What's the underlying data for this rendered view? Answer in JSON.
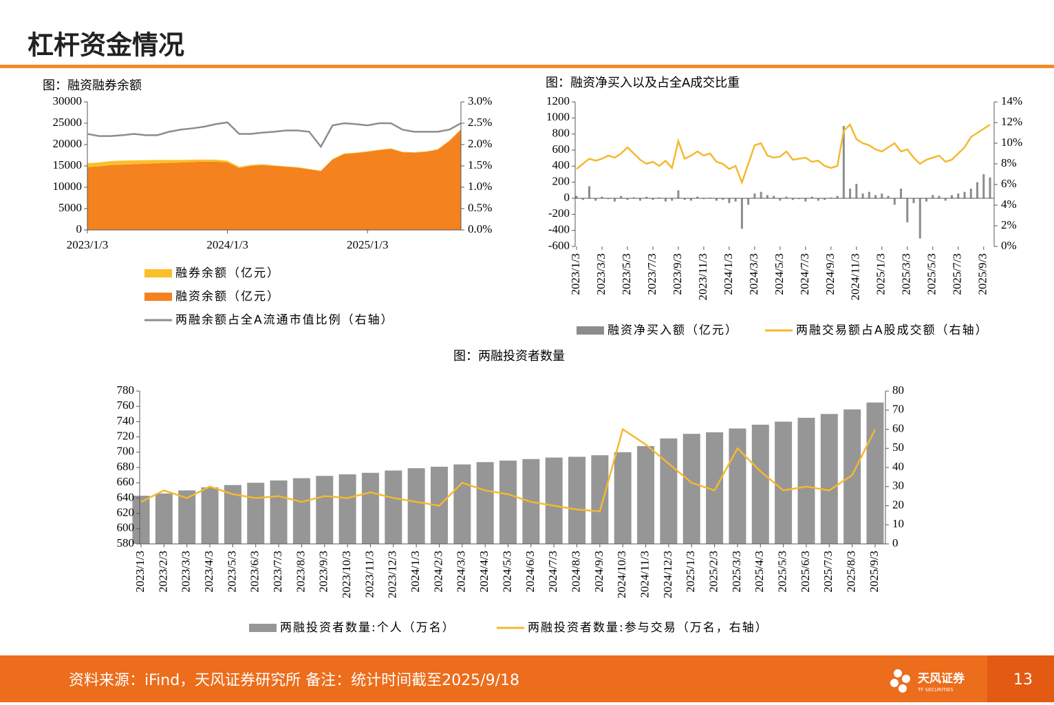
{
  "header": {
    "title": "杠杆资金情况"
  },
  "footer": {
    "source": "资料来源：iFind，天风证券研究所 备注：统计时间截至2025/9/18",
    "logo_cn": "天风证券",
    "logo_en": "TF SECURITIES",
    "page_number": "13"
  },
  "chart_data": [
    {
      "type": "area",
      "title": "图：融资融券余额",
      "stacked": true,
      "categories": [
        "2023/1/3",
        null,
        null,
        null,
        null,
        null,
        null,
        null,
        null,
        null,
        null,
        null,
        "2024/1/3",
        null,
        null,
        null,
        null,
        null,
        null,
        null,
        null,
        null,
        null,
        null,
        "2025/1/3",
        null,
        null,
        null,
        null,
        null,
        null,
        null,
        null
      ],
      "ylim": [
        0,
        30000
      ],
      "yticks": [
        0,
        5000,
        10000,
        15000,
        20000,
        25000,
        30000
      ],
      "y2lim": [
        0,
        3
      ],
      "y2ticks": [
        {
          "value": 0,
          "label": "0.0%"
        },
        {
          "value": 0.5,
          "label": "0.5%"
        },
        {
          "value": 1,
          "label": "1.0%"
        },
        {
          "value": 1.5,
          "label": "1.5%"
        },
        {
          "value": 2,
          "label": "2.0%"
        },
        {
          "value": 2.5,
          "label": "2.5%"
        },
        {
          "value": 3,
          "label": "3.0%"
        }
      ],
      "series": [
        {
          "name": "融券余额（亿元）",
          "type": "area",
          "color": "#fbbf2a",
          "values": [
            900,
            920,
            930,
            950,
            900,
            850,
            800,
            700,
            600,
            550,
            500,
            450,
            400,
            300,
            250,
            200,
            150,
            120,
            110,
            100,
            100,
            110,
            120,
            120,
            120,
            120,
            120,
            110,
            110,
            110,
            110,
            120,
            120
          ]
        },
        {
          "name": "融资余额（亿元）",
          "type": "area",
          "color": "#f4821f",
          "values": [
            14700,
            14900,
            15200,
            15300,
            15400,
            15500,
            15600,
            15700,
            15800,
            15900,
            16000,
            16000,
            15800,
            14500,
            15000,
            15200,
            15000,
            14800,
            14600,
            14200,
            13800,
            16500,
            17800,
            18000,
            18300,
            18700,
            19000,
            18200,
            18100,
            18300,
            18800,
            20800,
            23500
          ]
        },
        {
          "name": "两融余额占全A流通市值比例（右轴）",
          "type": "line",
          "axis": "y2",
          "color": "#8c8c8c",
          "values": [
            2.25,
            2.2,
            2.2,
            2.22,
            2.25,
            2.22,
            2.22,
            2.3,
            2.35,
            2.38,
            2.42,
            2.48,
            2.52,
            2.25,
            2.25,
            2.28,
            2.3,
            2.33,
            2.33,
            2.3,
            1.95,
            2.45,
            2.5,
            2.48,
            2.45,
            2.5,
            2.5,
            2.35,
            2.3,
            2.3,
            2.3,
            2.35,
            2.5
          ]
        }
      ]
    },
    {
      "type": "bar",
      "title": "图：融资净买入以及占全A成交比重",
      "categories": [
        "2023/1/3",
        null,
        null,
        null,
        "2023/3/3",
        null,
        null,
        null,
        "2023/5/3",
        null,
        null,
        null,
        "2023/7/3",
        null,
        null,
        null,
        "2023/9/3",
        null,
        null,
        null,
        "2023/11/3",
        null,
        null,
        null,
        "2024/1/3",
        null,
        null,
        null,
        "2024/3/3",
        null,
        null,
        null,
        "2024/5/3",
        null,
        null,
        null,
        "2024/7/3",
        null,
        null,
        null,
        "2024/9/3",
        null,
        null,
        null,
        "2024/11/3",
        null,
        null,
        null,
        "2025/1/3",
        null,
        null,
        null,
        "2025/3/3",
        null,
        null,
        null,
        "2025/5/3",
        null,
        null,
        null,
        "2025/7/3",
        null,
        null,
        null,
        "2025/9/3",
        null
      ],
      "ylim": [
        -600,
        1200
      ],
      "yticks": [
        -600,
        -400,
        -200,
        0,
        200,
        400,
        600,
        800,
        1000,
        1200
      ],
      "y2lim": [
        0,
        14
      ],
      "y2ticks": [
        {
          "value": 0,
          "label": "0%"
        },
        {
          "value": 2,
          "label": "2%"
        },
        {
          "value": 4,
          "label": "4%"
        },
        {
          "value": 6,
          "label": "6%"
        },
        {
          "value": 8,
          "label": "8%"
        },
        {
          "value": 10,
          "label": "10%"
        },
        {
          "value": 12,
          "label": "12%"
        },
        {
          "value": 14,
          "label": "14%"
        }
      ],
      "series": [
        {
          "name": "融资净买入额（亿元）",
          "type": "bar",
          "color": "#8c8c8c",
          "values": [
            30,
            -20,
            150,
            -30,
            20,
            -10,
            -40,
            30,
            -20,
            10,
            -30,
            20,
            -20,
            10,
            -40,
            -30,
            100,
            -20,
            -30,
            20,
            -10,
            10,
            -30,
            -20,
            -60,
            -40,
            -380,
            -80,
            60,
            80,
            40,
            30,
            -30,
            20,
            -20,
            -10,
            -40,
            20,
            -30,
            -20,
            10,
            30,
            900,
            120,
            180,
            60,
            80,
            40,
            60,
            30,
            -80,
            120,
            -300,
            -60,
            -500,
            -40,
            40,
            30,
            -30,
            40,
            60,
            80,
            120,
            200,
            300,
            260
          ]
        },
        {
          "name": "两融交易额占A股成交额（右轴）",
          "type": "line",
          "axis": "y2",
          "color": "#f5b82e",
          "values": [
            7.5,
            8.0,
            8.5,
            8.3,
            8.5,
            8.8,
            8.6,
            9.0,
            9.6,
            9.0,
            8.4,
            8.0,
            8.2,
            7.8,
            8.3,
            7.6,
            10.2,
            8.5,
            8.8,
            9.2,
            8.8,
            9.0,
            8.2,
            8.0,
            7.5,
            7.8,
            6.2,
            8.0,
            9.8,
            10.0,
            8.8,
            8.6,
            8.7,
            9.2,
            8.4,
            8.5,
            8.6,
            8.2,
            8.3,
            7.8,
            7.6,
            7.8,
            11.2,
            11.8,
            10.4,
            10.0,
            9.8,
            9.4,
            9.2,
            9.6,
            10.0,
            9.2,
            9.4,
            8.6,
            8.0,
            8.4,
            8.6,
            8.8,
            8.2,
            8.4,
            9.0,
            9.6,
            10.6,
            11.0,
            11.4,
            11.8
          ]
        }
      ]
    },
    {
      "type": "bar",
      "title": "图：两融投资者数量",
      "categories": [
        "2023/1/3",
        "2023/2/3",
        "2023/3/3",
        "2023/4/3",
        "2023/5/3",
        "2023/6/3",
        "2023/7/3",
        "2023/8/3",
        "2023/9/3",
        "2023/10/3",
        "2023/11/3",
        "2023/12/3",
        "2024/1/3",
        "2024/2/3",
        "2024/3/3",
        "2024/4/3",
        "2024/5/3",
        "2024/6/3",
        "2024/7/3",
        "2024/8/3",
        "2024/9/3",
        "2024/10/3",
        "2024/11/3",
        "2024/12/3",
        "2025/1/3",
        "2025/2/3",
        "2025/3/3",
        "2025/4/3",
        "2025/5/3",
        "2025/6/3",
        "2025/7/3",
        "2025/8/3",
        "2025/9/3"
      ],
      "ylim": [
        580,
        780
      ],
      "yticks": [
        580,
        600,
        620,
        640,
        660,
        680,
        700,
        720,
        740,
        760,
        780
      ],
      "y2lim": [
        0,
        80
      ],
      "y2ticks": [
        0,
        10,
        20,
        30,
        40,
        50,
        60,
        70,
        80
      ],
      "series": [
        {
          "name": "两融投资者数量:个人（万名）",
          "type": "bar",
          "color": "#969696",
          "values": [
            643,
            646,
            650,
            654,
            657,
            660,
            663,
            666,
            669,
            671,
            673,
            676,
            679,
            681,
            684,
            687,
            689,
            691,
            693,
            694,
            696,
            700,
            708,
            718,
            724,
            726,
            731,
            736,
            740,
            745,
            750,
            756,
            765
          ]
        },
        {
          "name": "两融投资者数量:参与交易（万名，右轴）",
          "type": "line",
          "axis": "y2",
          "color": "#f5b82e",
          "values": [
            22,
            28,
            24,
            30,
            26,
            24,
            25,
            22,
            25,
            24,
            27,
            24,
            22,
            20,
            32,
            28,
            26,
            22,
            20,
            18,
            17,
            60,
            52,
            42,
            32,
            28,
            50,
            38,
            28,
            30,
            28,
            36,
            60
          ]
        }
      ]
    }
  ]
}
